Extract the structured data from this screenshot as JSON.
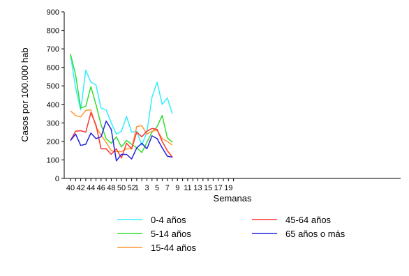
{
  "chart_data": {
    "type": "line",
    "ylabel": "Casos por 100.000 hab",
    "xlabel": "Semanas",
    "ylim": [
      0,
      900
    ],
    "yticks": [
      0,
      100,
      200,
      300,
      400,
      500,
      600,
      700,
      800,
      900
    ],
    "x_categories": [
      "40",
      "41",
      "42",
      "43",
      "44",
      "45",
      "46",
      "47",
      "48",
      "49",
      "50",
      "51",
      "52",
      "1",
      "2",
      "3",
      "4",
      "5",
      "6",
      "7",
      "8",
      "9",
      "10",
      "11",
      "12",
      "13",
      "14",
      "15",
      "16",
      "17",
      "18",
      "19",
      "20"
    ],
    "x_tick_labels": [
      "40",
      "42",
      "44",
      "46",
      "48",
      "50",
      "52",
      "1",
      "3",
      "5",
      "7",
      "9",
      "11",
      "13",
      "15",
      "17",
      "19"
    ],
    "grid": false,
    "legend_position": "bottom",
    "series": [
      {
        "name": "0-4 años",
        "color": "#33eeff",
        "values": [
          668,
          490,
          370,
          585,
          520,
          505,
          380,
          370,
          300,
          240,
          255,
          335,
          250,
          255,
          180,
          250,
          440,
          520,
          400,
          435,
          350
        ]
      },
      {
        "name": "5-14 años",
        "color": "#33dd33",
        "values": [
          672,
          560,
          380,
          390,
          495,
          400,
          290,
          215,
          190,
          225,
          170,
          205,
          185,
          165,
          140,
          195,
          250,
          280,
          340,
          220,
          195
        ]
      },
      {
        "name": "15-44 años",
        "color": "#ff9933",
        "values": [
          365,
          340,
          332,
          368,
          370,
          280,
          235,
          195,
          150,
          145,
          145,
          160,
          160,
          280,
          285,
          240,
          255,
          260,
          215,
          200,
          180
        ]
      },
      {
        "name": "45-64 años",
        "color": "#ff3333",
        "values": [
          205,
          255,
          258,
          250,
          355,
          290,
          160,
          160,
          130,
          160,
          110,
          190,
          160,
          250,
          225,
          255,
          270,
          265,
          200,
          150,
          115
        ]
      },
      {
        "name": "65 años o más",
        "color": "#2222dd",
        "values": [
          205,
          240,
          178,
          185,
          245,
          215,
          225,
          310,
          265,
          95,
          130,
          130,
          105,
          165,
          190,
          160,
          230,
          215,
          165,
          120,
          115
        ]
      }
    ]
  }
}
